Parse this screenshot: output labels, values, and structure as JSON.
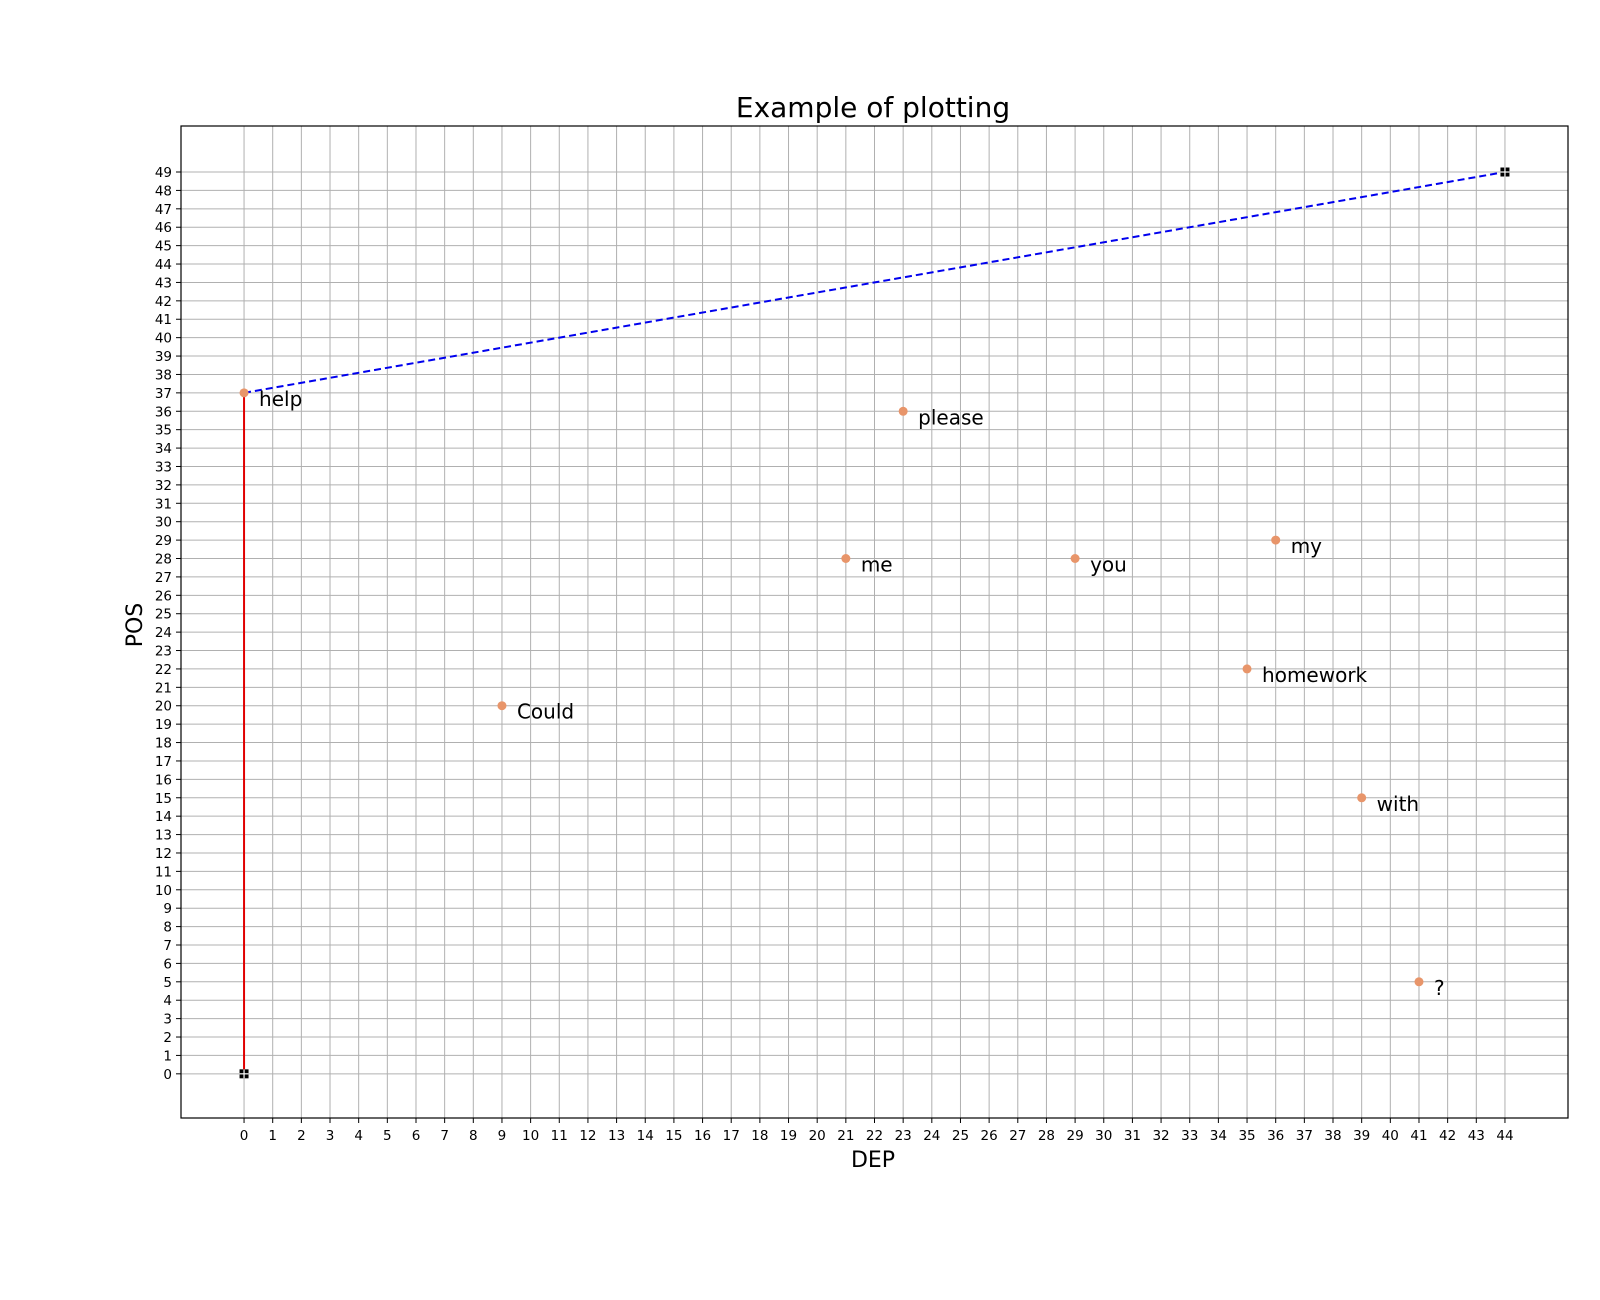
{
  "chart_data": {
    "type": "scatter",
    "title": "Example of plotting",
    "xlabel": "DEP",
    "ylabel": "POS",
    "xlim": [
      -2.2,
      46.2
    ],
    "ylim": [
      -2.4,
      51.5
    ],
    "xticks": [
      0,
      1,
      2,
      3,
      4,
      5,
      6,
      7,
      8,
      9,
      10,
      11,
      12,
      13,
      14,
      15,
      16,
      17,
      18,
      19,
      20,
      21,
      22,
      23,
      24,
      25,
      26,
      27,
      28,
      29,
      30,
      31,
      32,
      33,
      34,
      35,
      36,
      37,
      38,
      39,
      40,
      41,
      42,
      43,
      44
    ],
    "yticks": [
      0,
      1,
      2,
      3,
      4,
      5,
      6,
      7,
      8,
      9,
      10,
      11,
      12,
      13,
      14,
      15,
      16,
      17,
      18,
      19,
      20,
      21,
      22,
      23,
      24,
      25,
      26,
      27,
      28,
      29,
      30,
      31,
      32,
      33,
      34,
      35,
      36,
      37,
      38,
      39,
      40,
      41,
      42,
      43,
      44,
      45,
      46,
      47,
      48,
      49
    ],
    "grid": true,
    "colors": {
      "points": "#e8956a",
      "solid_line": "#e00000",
      "dashed_line": "#0000ee",
      "markers": "#000000"
    },
    "points": [
      {
        "label": "help",
        "x": 0,
        "y": 37
      },
      {
        "label": "Could",
        "x": 9,
        "y": 20
      },
      {
        "label": "me",
        "x": 21,
        "y": 28
      },
      {
        "label": "please",
        "x": 23,
        "y": 36
      },
      {
        "label": "you",
        "x": 29,
        "y": 28
      },
      {
        "label": "homework",
        "x": 35,
        "y": 22
      },
      {
        "label": "my",
        "x": 36,
        "y": 29
      },
      {
        "label": "with",
        "x": 39,
        "y": 15
      },
      {
        "label": "?",
        "x": 41,
        "y": 5
      }
    ],
    "lines": [
      {
        "style": "solid",
        "color": "#e00000",
        "points": [
          [
            0,
            0
          ],
          [
            0,
            37
          ]
        ]
      },
      {
        "style": "dashed",
        "color": "#0000ee",
        "points": [
          [
            0,
            37
          ],
          [
            44,
            49
          ]
        ]
      }
    ],
    "square_markers": [
      [
        0,
        0
      ],
      [
        44,
        49
      ]
    ]
  }
}
